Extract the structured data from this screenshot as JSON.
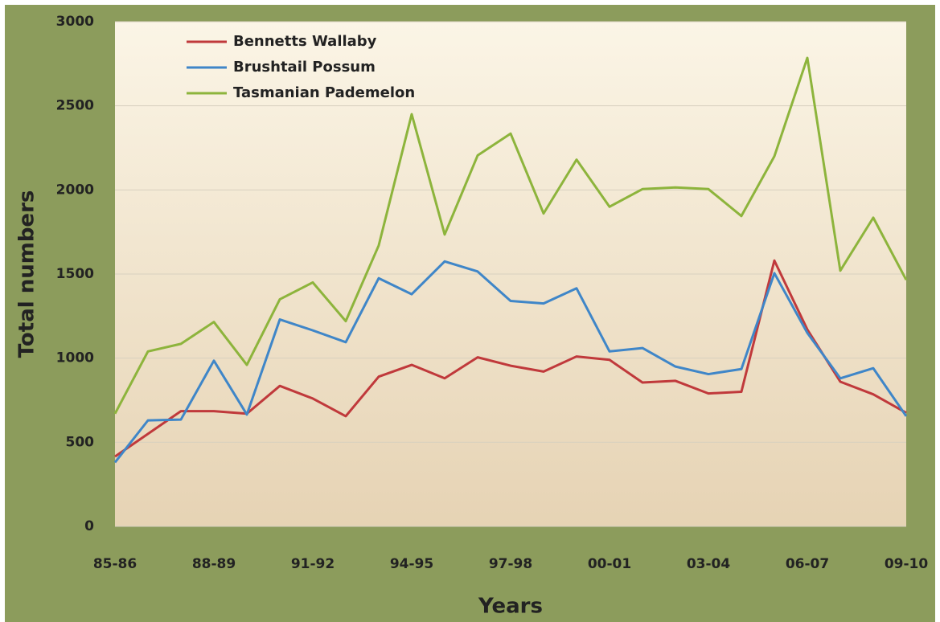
{
  "chart_data": {
    "type": "line",
    "x_label": "Years",
    "y_label": "Total numbers",
    "categories": [
      "85-86",
      null,
      null,
      "88-89",
      null,
      null,
      "91-92",
      null,
      null,
      "94-95",
      null,
      null,
      "97-98",
      null,
      null,
      "00-01",
      null,
      null,
      "03-04",
      null,
      null,
      "06-07",
      null,
      null,
      "09-10"
    ],
    "series": [
      {
        "name": "Bennetts Wallaby",
        "color": "#c0393b",
        "values": [
          415,
          550,
          685,
          685,
          670,
          835,
          760,
          655,
          890,
          960,
          880,
          1005,
          955,
          920,
          1010,
          990,
          855,
          865,
          790,
          800,
          1580,
          1170,
          860,
          785,
          675
        ]
      },
      {
        "name": "Brushtail Possum",
        "color": "#3f86c8",
        "values": [
          380,
          630,
          635,
          985,
          665,
          1230,
          1165,
          1095,
          1475,
          1380,
          1575,
          1515,
          1340,
          1325,
          1415,
          1040,
          1060,
          950,
          905,
          935,
          1505,
          1150,
          880,
          940,
          655
        ]
      },
      {
        "name": "Tasmanian Pademelon",
        "color": "#8db43c",
        "values": [
          670,
          1040,
          1085,
          1215,
          960,
          1350,
          1450,
          1220,
          1670,
          2450,
          1735,
          2205,
          2335,
          1860,
          2180,
          1900,
          2005,
          2015,
          2005,
          1845,
          2200,
          2785,
          1520,
          1835,
          1465
        ]
      }
    ],
    "ylim": [
      0,
      3000
    ],
    "yticks": [
      0,
      500,
      1000,
      1500,
      2000,
      2500,
      3000
    ],
    "grid": true,
    "legend": "top-left"
  }
}
